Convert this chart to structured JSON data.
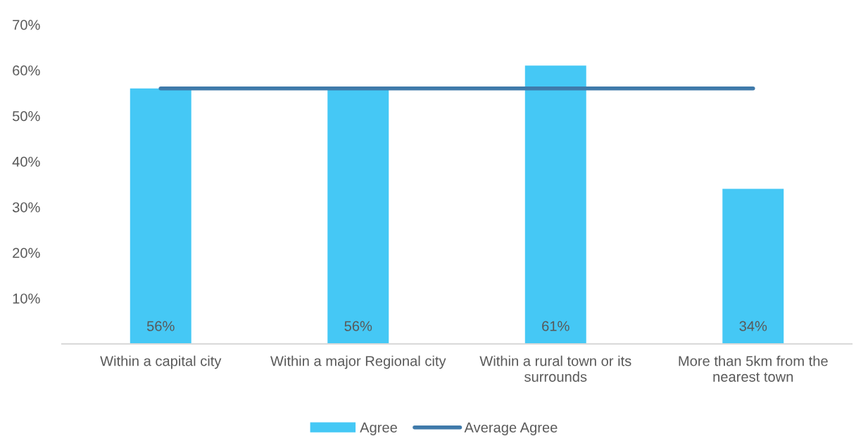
{
  "chart_data": {
    "type": "bar",
    "categories": [
      "Within a capital city",
      "Within a major Regional city",
      "Within a rural town or its surrounds",
      "More than 5km from the nearest town"
    ],
    "series": [
      {
        "name": "Agree",
        "color": "#45c8f5",
        "values": [
          56,
          56,
          61,
          34
        ],
        "value_labels": [
          "56%",
          "56%",
          "61%",
          "34%"
        ]
      },
      {
        "name": "Average Agree",
        "type": "line",
        "color": "#3f7aaa",
        "values": [
          56,
          56,
          56,
          56
        ]
      }
    ],
    "ylim": [
      0,
      70
    ],
    "yticks": [
      {
        "value": 10,
        "label": "10%"
      },
      {
        "value": 20,
        "label": "20%"
      },
      {
        "value": 30,
        "label": "30%"
      },
      {
        "value": 40,
        "label": "40%"
      },
      {
        "value": 50,
        "label": "50%"
      },
      {
        "value": 60,
        "label": "60%"
      },
      {
        "value": 70,
        "label": "70%"
      }
    ],
    "legend": "bottom"
  }
}
